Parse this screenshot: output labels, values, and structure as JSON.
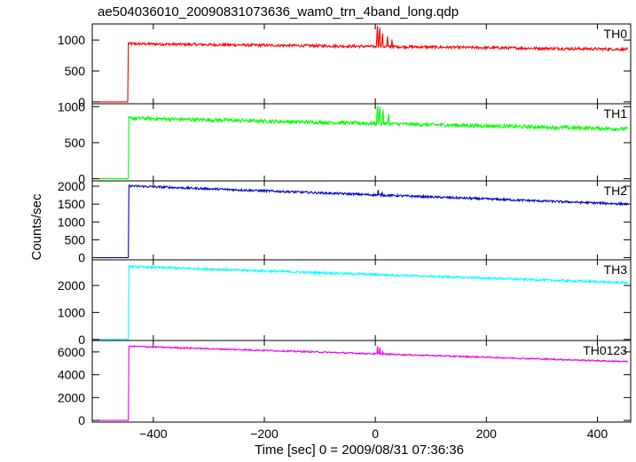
{
  "chart_data": {
    "type": "line",
    "title": "ae504036010_20090831073636_wam0_trn_4band_long.qdp",
    "xlabel": "Time [sec] 0 = 2009/08/31 07:36:36",
    "ylabel": "Counts/sec",
    "xlim": [
      -510,
      460
    ],
    "xticks": [
      -400,
      -200,
      0,
      200,
      400
    ],
    "xtick_labels": [
      "−400",
      "−200",
      "0",
      "200",
      "400"
    ],
    "grid": false,
    "series": [
      {
        "name": "TH0",
        "color": "#ff0000",
        "ylim": [
          -30,
          1260
        ],
        "yticks": [
          0,
          500,
          1000
        ],
        "ytick_labels": [
          "0",
          "500",
          "1000"
        ],
        "pre_level": 0,
        "onset": -445,
        "start_level": 940,
        "end_level": 850,
        "noise": 22,
        "spikes": [
          {
            "x": 4,
            "y": 1230
          },
          {
            "x": 8,
            "y": 1200
          },
          {
            "x": 13,
            "y": 1110
          },
          {
            "x": 22,
            "y": 1060
          },
          {
            "x": 30,
            "y": 1010
          }
        ]
      },
      {
        "name": "TH1",
        "color": "#00ff00",
        "ylim": [
          -30,
          1040
        ],
        "yticks": [
          0,
          500,
          1000
        ],
        "ytick_labels": [
          "0",
          "500",
          "1000"
        ],
        "pre_level": 0,
        "onset": -444,
        "start_level": 840,
        "end_level": 690,
        "noise": 25,
        "spikes": [
          {
            "x": 4,
            "y": 1010
          },
          {
            "x": 8,
            "y": 1000
          },
          {
            "x": 14,
            "y": 960
          },
          {
            "x": 24,
            "y": 900
          }
        ]
      },
      {
        "name": "TH2",
        "color": "#0000cc",
        "ylim": [
          -60,
          2150
        ],
        "yticks": [
          0,
          500,
          1000,
          1500,
          2000
        ],
        "ytick_labels": [
          "0",
          "500",
          "1000",
          "1500",
          "2000"
        ],
        "pre_level": 0,
        "onset": -444,
        "start_level": 2010,
        "end_level": 1500,
        "noise": 30,
        "spikes": [
          {
            "x": 5,
            "y": 1900
          },
          {
            "x": 12,
            "y": 1820
          }
        ]
      },
      {
        "name": "TH3",
        "color": "#00ffff",
        "ylim": [
          -40,
          2950
        ],
        "yticks": [
          0,
          1000,
          2000
        ],
        "ytick_labels": [
          "0",
          "1000",
          "2000"
        ],
        "pre_level": 0,
        "onset": -444,
        "start_level": 2700,
        "end_level": 2100,
        "noise": 40,
        "spikes": []
      },
      {
        "name": "TH0123",
        "color": "#ee00ee",
        "ylim": [
          -150,
          7000
        ],
        "yticks": [
          0,
          2000,
          4000,
          6000
        ],
        "ytick_labels": [
          "0",
          "2000",
          "4000",
          "6000"
        ],
        "pre_level": 0,
        "onset": -444,
        "start_level": 6500,
        "end_level": 5150,
        "noise": 60,
        "spikes": [
          {
            "x": 4,
            "y": 6500
          },
          {
            "x": 8,
            "y": 6400
          },
          {
            "x": 13,
            "y": 6100
          }
        ]
      }
    ]
  }
}
